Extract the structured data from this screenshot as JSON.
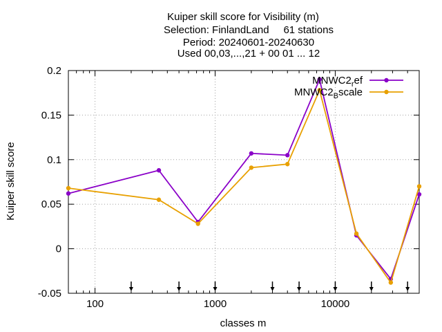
{
  "chart_data": {
    "type": "line",
    "title_lines": [
      "Kuiper skill score  for Visibility (m)",
      "Selection: FinlandLand     61 stations",
      "Period: 20240601-20240630",
      "Used 00,03,...,21 + 00 01 ... 12"
    ],
    "xlabel": "classes m",
    "ylabel": "Kuiper skill score",
    "x_scale": "log",
    "xlim": [
      60,
      50000
    ],
    "ylim": [
      -0.05,
      0.2
    ],
    "x_ticks": [
      {
        "value": 100,
        "label": "100"
      },
      {
        "value": 1000,
        "label": "1000"
      },
      {
        "value": 10000,
        "label": "10000"
      }
    ],
    "y_ticks": [
      {
        "value": -0.05,
        "label": "-0.05"
      },
      {
        "value": 0,
        "label": "0"
      },
      {
        "value": 0.05,
        "label": "0.05"
      },
      {
        "value": 0.1,
        "label": "0.1"
      },
      {
        "value": 0.15,
        "label": "0.15"
      },
      {
        "value": 0.2,
        "label": "0.2"
      }
    ],
    "grid": true,
    "legend_position": "top-right",
    "threshold_markers": [
      200,
      500,
      1000,
      3000,
      5000,
      10000,
      20000,
      40000
    ],
    "series": [
      {
        "name_main": "MNWC2",
        "name_sub": "r",
        "name_tail": "ef",
        "color": "#8a00c8",
        "x": [
          60,
          340,
          720,
          2000,
          4000,
          7400,
          15000,
          29000,
          50000
        ],
        "y": [
          0.062,
          0.088,
          0.03,
          0.107,
          0.105,
          0.19,
          0.015,
          -0.034,
          0.061
        ]
      },
      {
        "name_main": "MNWC2",
        "name_sub": "B",
        "name_tail": "scale",
        "color": "#e8a000",
        "x": [
          60,
          340,
          720,
          2000,
          4000,
          7400,
          15000,
          29000,
          50000
        ],
        "y": [
          0.068,
          0.055,
          0.028,
          0.091,
          0.095,
          0.178,
          0.017,
          -0.038,
          0.07
        ]
      }
    ]
  }
}
